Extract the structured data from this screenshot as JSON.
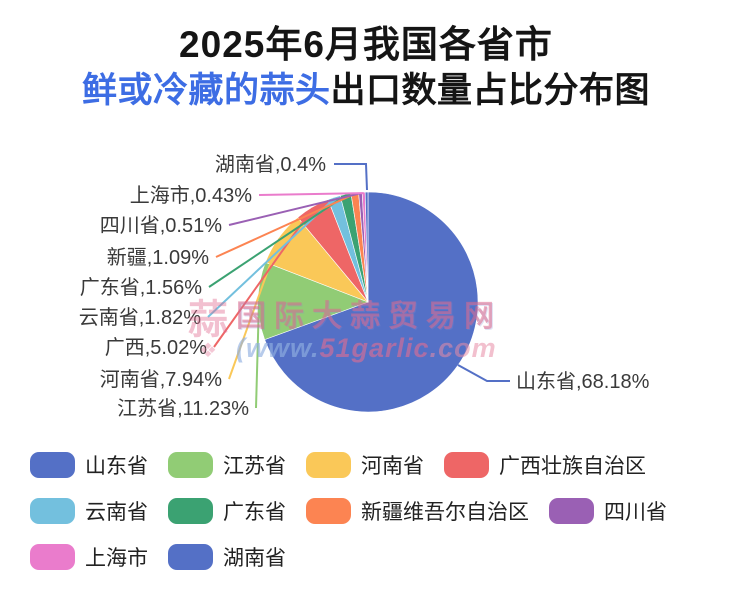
{
  "title": {
    "line1": "2025年6月我国各省市",
    "line2_highlight": "鲜或冷藏的蒜头",
    "line2_rest": "出口数量占比分布图",
    "highlight_color": "#3D6DE4"
  },
  "chart_data": {
    "type": "pie",
    "title": "2025年6月我国各省市鲜或冷藏的蒜头出口数量占比分布图",
    "unit": "percent of export quantity",
    "legend_position": "bottom-left",
    "label_format": "name,percent",
    "series": [
      {
        "label": "山东省",
        "legend": "山东省",
        "pct_text": "68.18%",
        "value": 68.18,
        "color": "#5470C6"
      },
      {
        "label": "江苏省",
        "legend": "江苏省",
        "pct_text": "11.23%",
        "value": 11.23,
        "color": "#91CC75"
      },
      {
        "label": "河南省",
        "legend": "河南省",
        "pct_text": "7.94%",
        "value": 7.94,
        "color": "#FAC858"
      },
      {
        "label": "广西",
        "legend": "广西壮族自治区",
        "pct_text": "5.02%",
        "value": 5.02,
        "color": "#EE6666"
      },
      {
        "label": "云南省",
        "legend": "云南省",
        "pct_text": "1.82%",
        "value": 1.82,
        "color": "#73C0DE"
      },
      {
        "label": "广东省",
        "legend": "广东省",
        "pct_text": "1.56%",
        "value": 1.56,
        "color": "#3BA272"
      },
      {
        "label": "新疆",
        "legend": "新疆维吾尔自治区",
        "pct_text": "1.09%",
        "value": 1.09,
        "color": "#FC8452"
      },
      {
        "label": "四川省",
        "legend": "四川省",
        "pct_text": "0.51%",
        "value": 0.51,
        "color": "#9A60B4"
      },
      {
        "label": "上海市",
        "legend": "上海市",
        "pct_text": "0.43%",
        "value": 0.43,
        "color": "#EA7CCC"
      },
      {
        "label": "湖南省",
        "legend": "湖南省",
        "pct_text": "0.4%",
        "value": 0.4,
        "color": "#5470C6"
      }
    ]
  },
  "watermark": {
    "logo_glyph": "蒜",
    "logo_mark": "❖",
    "line1": "国际大蒜贸易网",
    "line2_prefix": "(www.",
    "line2_mid": "51garlic",
    "line2_suffix": ".com"
  }
}
